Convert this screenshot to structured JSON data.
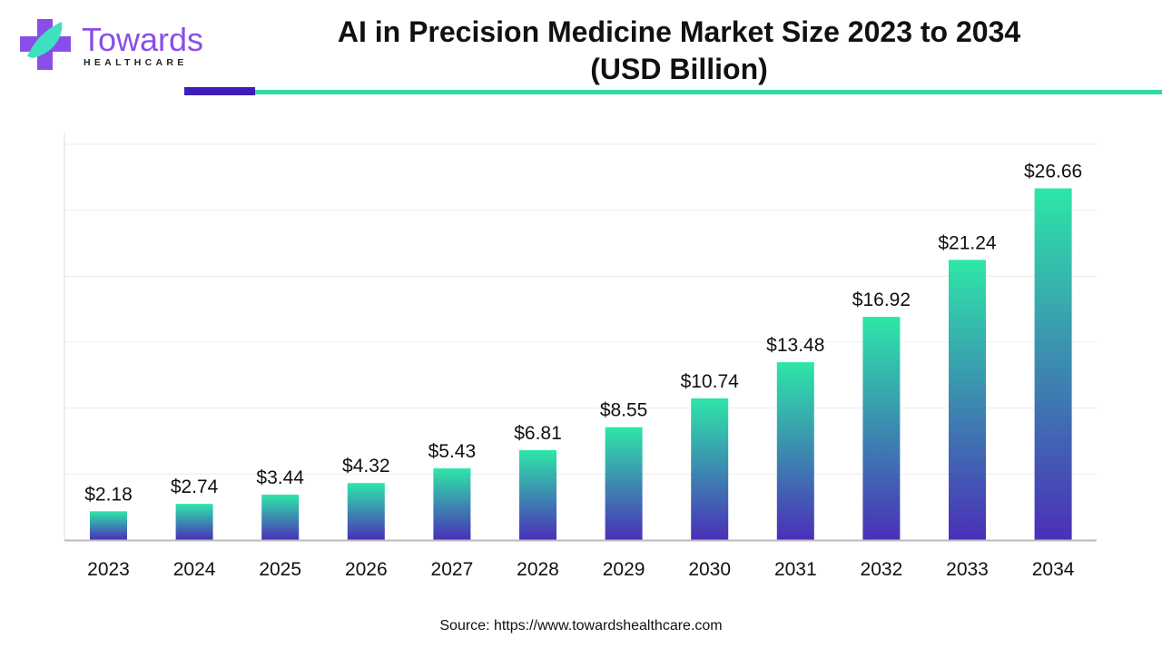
{
  "logo": {
    "brand": "Towards",
    "sub": "HEALTHCARE"
  },
  "colors": {
    "accent_purple": "#3d1fb8",
    "accent_teal": "#2fd9a6",
    "bar_top": "#2ee6a8",
    "bar_bottom": "#4a2fb8",
    "logo_purple": "#8a4ee8"
  },
  "source": "Source: https://www.towardshealthcare.com",
  "chart_data": {
    "type": "bar",
    "title": "AI in Precision Medicine Market Size 2023 to 2034",
    "subtitle": "(USD Billion)",
    "categories": [
      "2023",
      "2024",
      "2025",
      "2026",
      "2027",
      "2028",
      "2029",
      "2030",
      "2031",
      "2032",
      "2033",
      "2034"
    ],
    "values": [
      2.18,
      2.74,
      3.44,
      4.32,
      5.43,
      6.81,
      8.55,
      10.74,
      13.48,
      16.92,
      21.24,
      26.66
    ],
    "data_labels": [
      "$2.18",
      "$2.74",
      "$3.44",
      "$4.32",
      "$5.43",
      "$6.81",
      "$8.55",
      "$10.74",
      "$13.48",
      "$16.92",
      "$21.24",
      "$26.66"
    ],
    "ylim": [
      0,
      30
    ],
    "grid_step": 5,
    "grid": true,
    "xlabel": "",
    "ylabel": ""
  }
}
